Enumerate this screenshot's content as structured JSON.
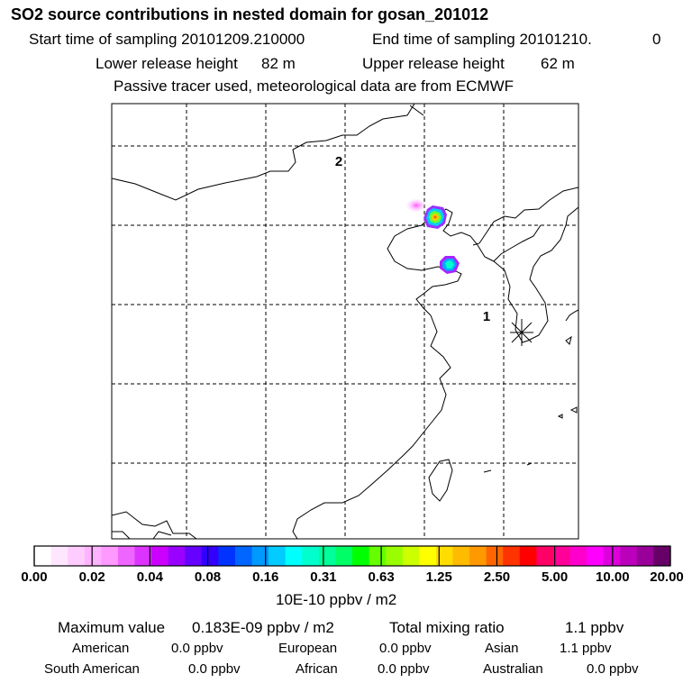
{
  "header": {
    "title": "SO2 source contributions in nested domain for gosan_201012",
    "start_label": "Start time of sampling 20101209.210000",
    "end_label": "End time of sampling 20101210.",
    "end_value": "0",
    "lower_label": "Lower release height",
    "lower_value": "82 m",
    "upper_label": "Upper release height",
    "upper_value": "62 m",
    "tracer_note": "Passive tracer used, meteorological data are from ECMWF"
  },
  "map": {
    "point_labels": [
      "2",
      "1"
    ]
  },
  "colorbar": {
    "colors": [
      "#ffffff",
      "#ffe6ff",
      "#ffccff",
      "#ffb3ff",
      "#ff99ff",
      "#ee66ff",
      "#dd33ff",
      "#cc00ff",
      "#9900ff",
      "#6600ff",
      "#3300ff",
      "#0033ff",
      "#0066ff",
      "#0099ff",
      "#00ccff",
      "#00ffff",
      "#00ffcc",
      "#00ff99",
      "#00ff66",
      "#00ff00",
      "#66ff00",
      "#99ff00",
      "#ccff00",
      "#ffff00",
      "#ffdd00",
      "#ffbb00",
      "#ff9900",
      "#ff6600",
      "#ff3300",
      "#ff0000",
      "#ff0066",
      "#ff0099",
      "#ff00cc",
      "#ff00ff",
      "#dd00dd",
      "#bb00bb",
      "#990099",
      "#660066"
    ],
    "ticks": [
      "0.00",
      "0.02",
      "0.04",
      "0.08",
      "0.16",
      "0.31",
      "0.63",
      "1.25",
      "2.50",
      "5.00",
      "10.00",
      "20.00"
    ],
    "unit": "10E-10 ppbv / m2"
  },
  "footer": {
    "max_label": "Maximum value",
    "max_value": "0.183E-09 ppbv / m2",
    "total_label": "Total mixing ratio",
    "total_value": "1.1 ppbv",
    "regions": [
      {
        "name": "American",
        "value": "0.0 ppbv"
      },
      {
        "name": "European",
        "value": "0.0 ppbv"
      },
      {
        "name": "Asian",
        "value": "1.1 ppbv"
      },
      {
        "name": "South American",
        "value": "0.0 ppbv"
      },
      {
        "name": "African",
        "value": "0.0 ppbv"
      },
      {
        "name": "Australian",
        "value": "0.0 ppbv"
      }
    ]
  }
}
